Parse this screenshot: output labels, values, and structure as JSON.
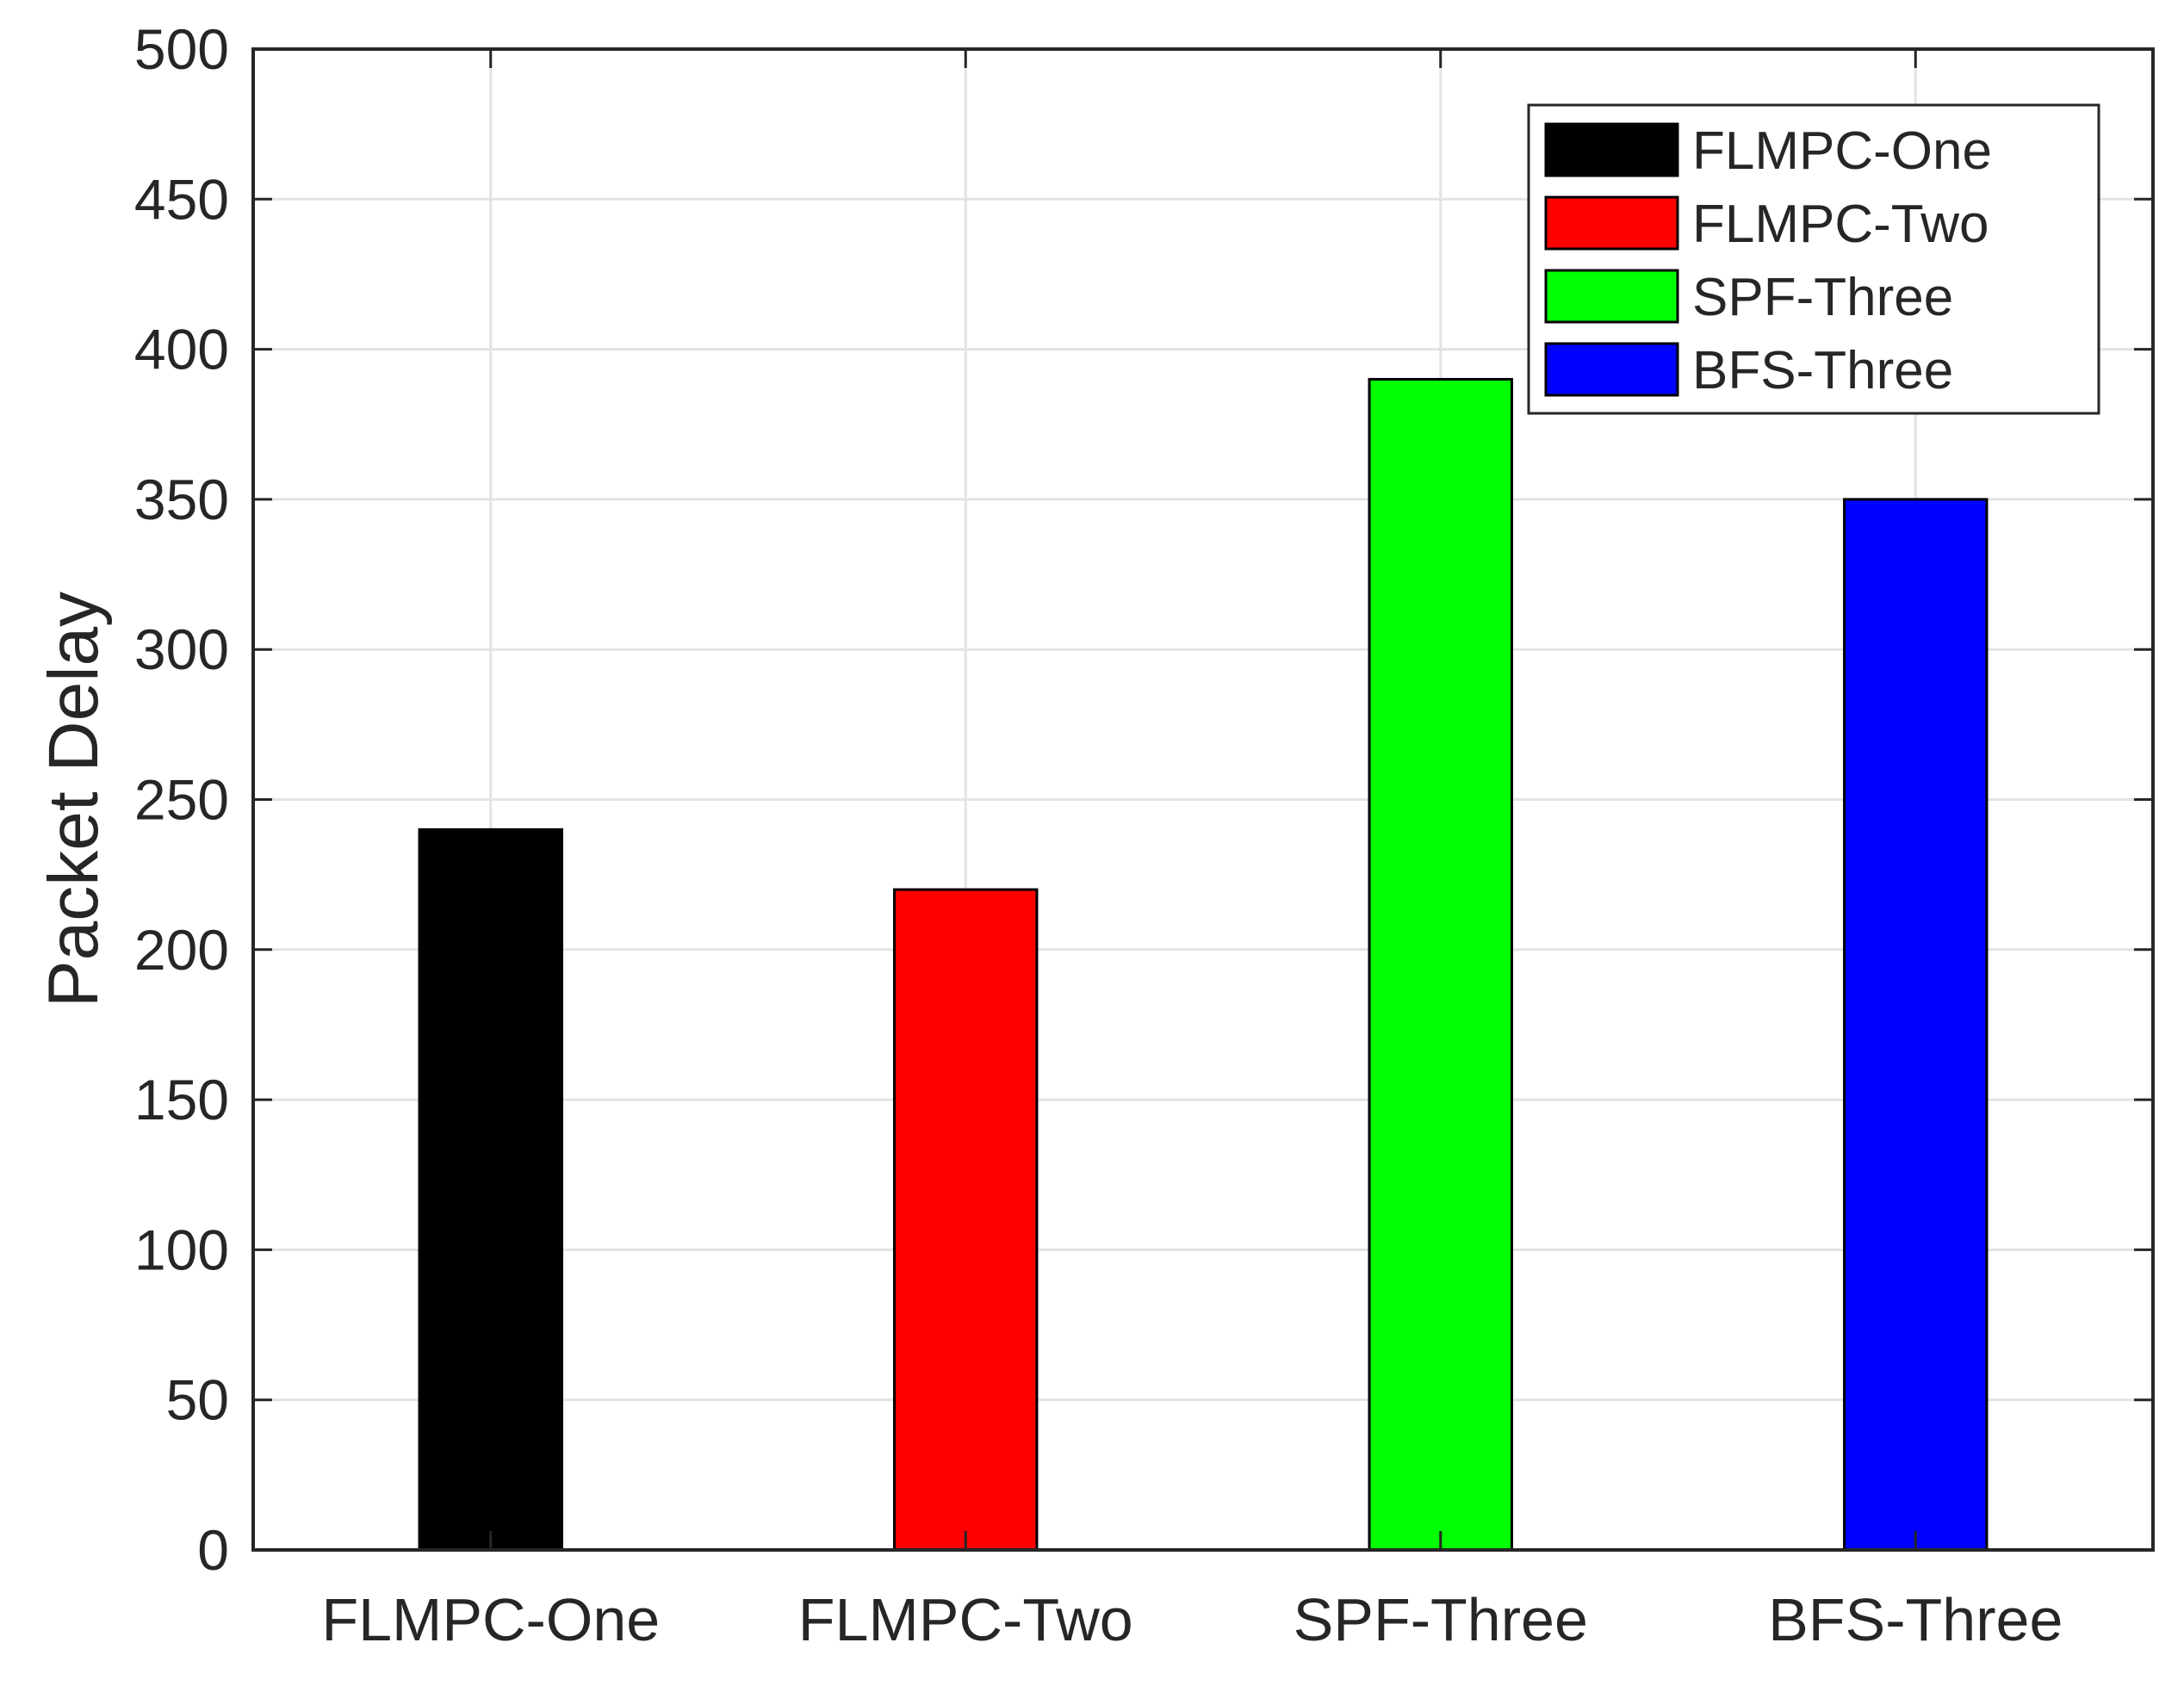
{
  "chart_data": {
    "type": "bar",
    "categories": [
      "FLMPC-One",
      "FLMPC-Two",
      "SPF-Three",
      "BFS-Three"
    ],
    "values": [
      240,
      220,
      390,
      350
    ],
    "colors": [
      "#000000",
      "#ff0000",
      "#00ff00",
      "#0000ff"
    ],
    "title": "",
    "xlabel": "",
    "ylabel": "Packet Delay",
    "ylim": [
      0,
      500
    ],
    "yticks": [
      0,
      50,
      100,
      150,
      200,
      250,
      300,
      350,
      400,
      450,
      500
    ],
    "grid": true,
    "legend": {
      "placement": "top-right",
      "entries": [
        "FLMPC-One",
        "FLMPC-Two",
        "SPF-Three",
        "BFS-Three"
      ]
    }
  }
}
